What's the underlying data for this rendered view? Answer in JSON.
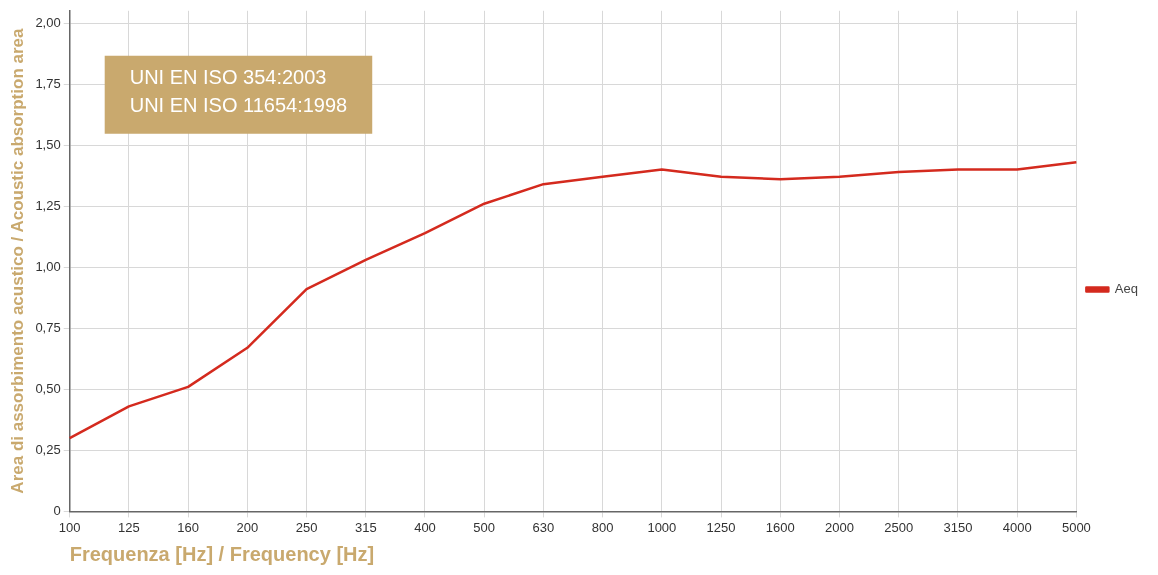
{
  "chart_data": {
    "type": "line",
    "xlabel": "Frequenza [Hz] / Frequency [Hz]",
    "ylabel": "Area di assorbimento acustico / Acoustic absorption area",
    "categories": [
      "100",
      "125",
      "160",
      "200",
      "250",
      "315",
      "400",
      "500",
      "630",
      "800",
      "1000",
      "1250",
      "1600",
      "2000",
      "2500",
      "3150",
      "4000",
      "5000"
    ],
    "series": [
      {
        "name": "Aeq",
        "color": "#d42a1e",
        "values": [
          0.3,
          0.43,
          0.51,
          0.67,
          0.91,
          1.03,
          1.14,
          1.26,
          1.34,
          1.37,
          1.4,
          1.37,
          1.36,
          1.37,
          1.39,
          1.4,
          1.4,
          1.43
        ]
      }
    ],
    "ylim": [
      0,
      2.05
    ],
    "yticks": [
      0,
      {
        "value": 0.25,
        "label": "0,25"
      },
      {
        "value": 0.5,
        "label": "0,50"
      },
      {
        "value": 0.75,
        "label": "0,75"
      },
      {
        "value": 1,
        "label": "1,00"
      },
      {
        "value": 1.25,
        "label": "1,25"
      },
      {
        "value": 1.5,
        "label": "1,50"
      },
      {
        "value": 1.75,
        "label": "1,75"
      },
      {
        "value": 2,
        "label": "2,00"
      }
    ],
    "annotations": [
      "UNI EN ISO 354:2003",
      "UNI EN ISO 11654:1998"
    ],
    "grid": true,
    "legend": "right",
    "marker": "none",
    "line_style": "solid"
  }
}
